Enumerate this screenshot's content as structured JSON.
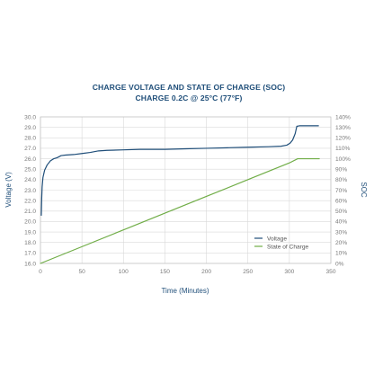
{
  "chart_data": {
    "type": "line",
    "title": "CHARGE VOLTAGE AND STATE OF CHARGE (SOC)",
    "subtitle": "CHARGE 0.2C @ 25°C (77°F)",
    "xlabel": "Time (Minutes)",
    "ylabel": "Voltage (V)",
    "y2label": "SOC",
    "xlim": [
      0,
      350
    ],
    "ylim": [
      16.0,
      30.0
    ],
    "y2lim": [
      0,
      140
    ],
    "x_ticks": [
      "0",
      "50",
      "100",
      "150",
      "200",
      "250",
      "300",
      "350"
    ],
    "y_ticks": [
      "16.0",
      "17.0",
      "18.0",
      "19.0",
      "20.0",
      "21.0",
      "22.0",
      "23.0",
      "24.0",
      "25.0",
      "26.0",
      "27.0",
      "28.0",
      "29.0",
      "30.0"
    ],
    "y2_ticks": [
      "0%",
      "10%",
      "20%",
      "30%",
      "40%",
      "50%",
      "60%",
      "70%",
      "80%",
      "90%",
      "100%",
      "110%",
      "120%",
      "130%",
      "140%"
    ],
    "grid": true,
    "legend_position": "bottom-right",
    "series": [
      {
        "name": "Voltage",
        "axis": "left",
        "color": "#1f4e79",
        "x": [
          1,
          1.5,
          2,
          3,
          5,
          8,
          12,
          16,
          20,
          25,
          30,
          40,
          50,
          60,
          70,
          80,
          100,
          120,
          150,
          175,
          200,
          225,
          250,
          275,
          290,
          297,
          301,
          304,
          307,
          309,
          312,
          320,
          335
        ],
        "values": [
          20.6,
          22.2,
          23.3,
          24.2,
          24.9,
          25.4,
          25.8,
          26.0,
          26.1,
          26.3,
          26.35,
          26.4,
          26.5,
          26.6,
          26.75,
          26.8,
          26.85,
          26.9,
          26.9,
          26.95,
          27.0,
          27.05,
          27.1,
          27.15,
          27.2,
          27.3,
          27.5,
          27.8,
          28.4,
          29.1,
          29.15,
          29.15,
          29.15
        ]
      },
      {
        "name": "State of Charge",
        "axis": "right",
        "color": "#70ad47",
        "x": [
          0,
          50,
          100,
          150,
          200,
          250,
          300,
          310,
          336
        ],
        "values": [
          0,
          16,
          32,
          48,
          64,
          80,
          96,
          100,
          100
        ]
      }
    ]
  }
}
